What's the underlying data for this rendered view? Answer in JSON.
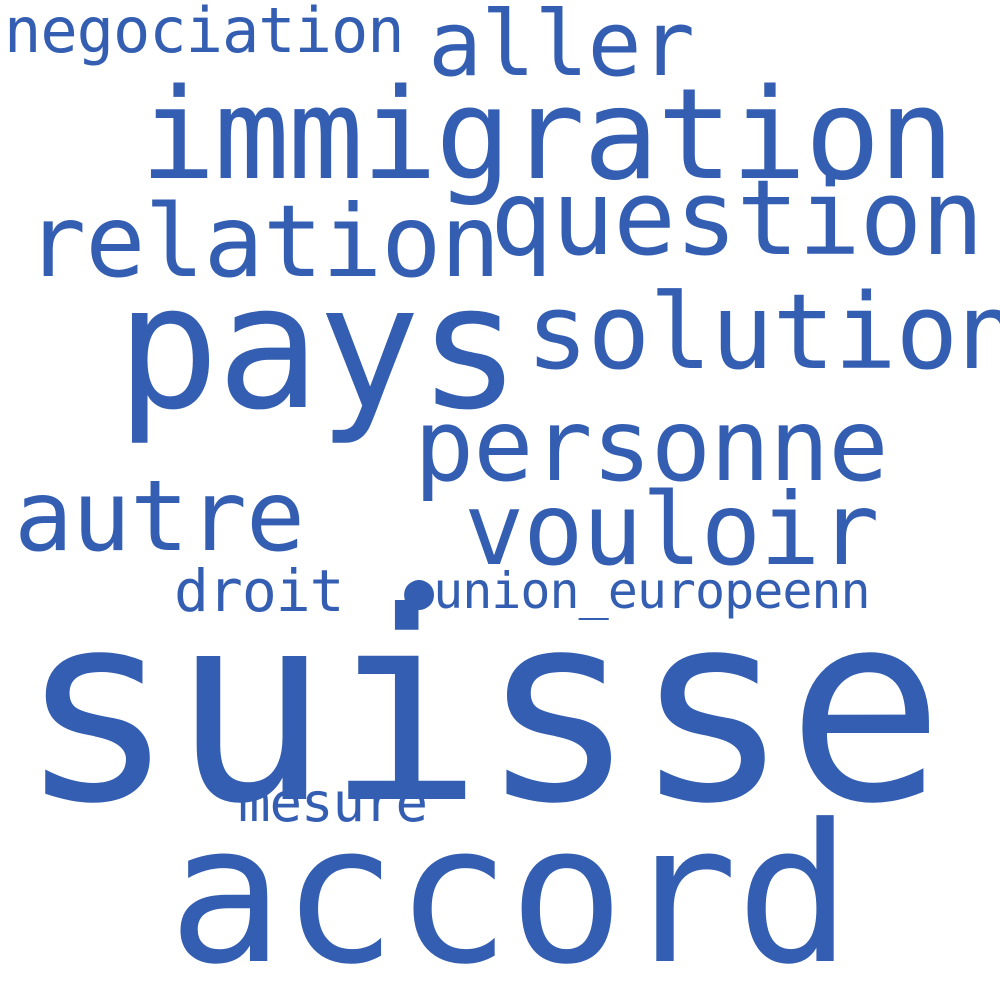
{
  "colors": {
    "background": "#ffffff",
    "word": "#345eb1"
  },
  "words": {
    "suisse": "suisse",
    "accord": "accord",
    "pays": "pays",
    "immigration": "immigration",
    "question": "question",
    "solution": "solution",
    "relation": "relation",
    "personne": "personne",
    "vouloir": "vouloir",
    "autre": "autre",
    "aller": "aller",
    "negociation": "negociation",
    "droit": "droit",
    "union_europeenn": "●union_europeenn",
    "mesure": "mesure"
  }
}
